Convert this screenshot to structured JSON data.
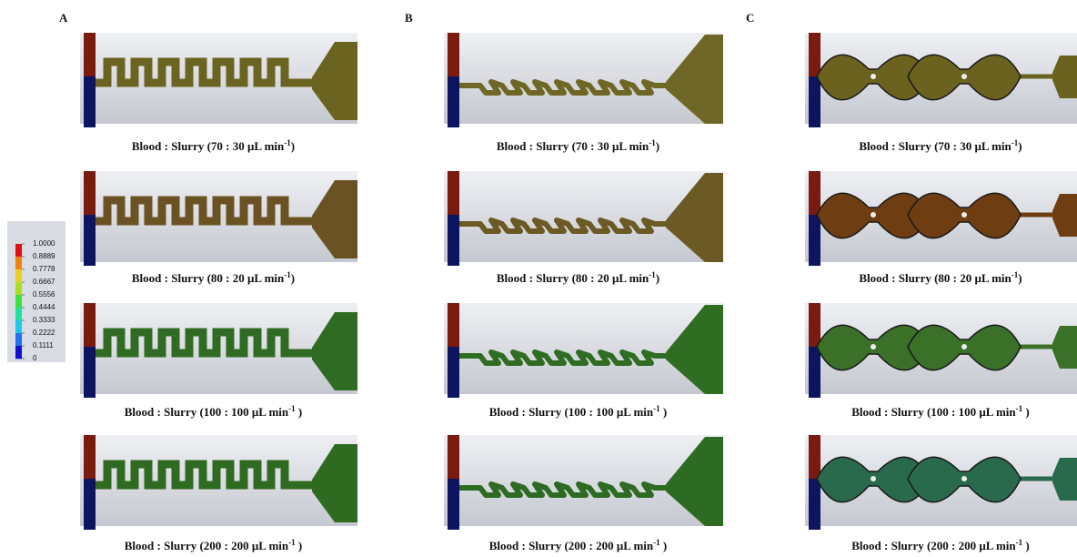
{
  "panels": [
    {
      "label": "A",
      "images": [
        {
          "caption": {
            "text": "Blood : Slurry (70 : 30 μL min",
            "sup": "-1",
            "end": ")"
          },
          "color": "#6b6420"
        },
        {
          "caption": {
            "text": "Blood : Slurry (80 : 20 μL min",
            "sup": "-1",
            "end": ")"
          },
          "color": "#6a5222"
        },
        {
          "caption": {
            "text": "Blood : Slurry (100 : 100 μL min",
            "sup": "-1",
            "end": " )"
          },
          "color": "#2f6b22"
        },
        {
          "caption": {
            "text": "Blood : Slurry (200 : 200 μL min",
            "sup": "-1",
            "end": " )"
          },
          "color": "#2e6b20"
        }
      ]
    },
    {
      "label": "B",
      "images": [
        {
          "caption": {
            "text": "Blood : Slurry (70 : 30 μL min",
            "sup": "-1",
            "end": ")"
          },
          "color": "#6e6725"
        },
        {
          "caption": {
            "text": "Blood : Slurry (80 : 20 μL min",
            "sup": "-1",
            "end": ")"
          },
          "color": "#6b5a24"
        },
        {
          "caption": {
            "text": "Blood : Slurry (100 : 100 μL min",
            "sup": "-1",
            "end": " )"
          },
          "color": "#2f6d23"
        },
        {
          "caption": {
            "text": "Blood : Slurry (200 : 200 μL min",
            "sup": "-1",
            "end": " )"
          },
          "color": "#2e6b22"
        }
      ]
    },
    {
      "label": "C",
      "images": [
        {
          "caption": {
            "text": "Blood : Slurry (70 : 30 μL min",
            "sup": "-1",
            "end": ")"
          },
          "color": "#6b6220"
        },
        {
          "caption": {
            "text": "Blood : Slurry (80 : 20 μL min",
            "sup": "-1",
            "end": ")"
          },
          "color": "#6e3e12"
        },
        {
          "caption": {
            "text": "Blood : Slurry (100 : 100 μL min",
            "sup": "-1",
            "end": " )"
          },
          "color": "#3a7028"
        },
        {
          "caption": {
            "text": "Blood : Slurry (200 : 200 μL min",
            "sup": "-1",
            "end": " )"
          },
          "color": "#2a6a4c"
        }
      ]
    }
  ],
  "colorbar": {
    "ticks": [
      {
        "value": 1,
        "label": "1.0000"
      },
      0.8889,
      0.7778,
      0.6667,
      0.5556,
      0.4444,
      0.3333,
      0.2222,
      0.1111,
      0
    ]
  }
}
